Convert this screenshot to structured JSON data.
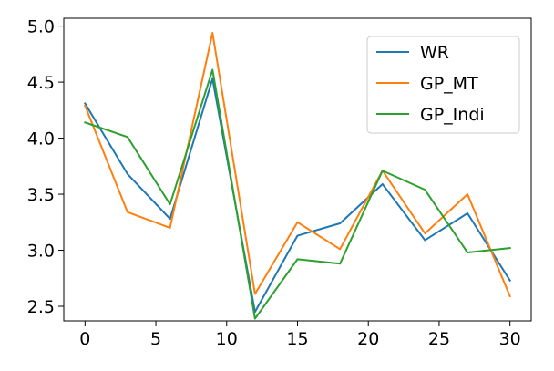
{
  "chart_data": {
    "type": "line",
    "title": "",
    "xlabel": "",
    "ylabel": "",
    "xlim": [
      -1.5,
      31.5
    ],
    "ylim": [
      2.37,
      5.07
    ],
    "xticks": [
      0,
      5,
      10,
      15,
      20,
      25,
      30
    ],
    "xtick_labels": [
      "0",
      "5",
      "10",
      "15",
      "20",
      "25",
      "30"
    ],
    "yticks": [
      2.5,
      3.0,
      3.5,
      4.0,
      4.5,
      5.0
    ],
    "ytick_labels": [
      "2.5",
      "3.0",
      "3.5",
      "4.0",
      "4.5",
      "5.0"
    ],
    "grid": false,
    "legend_position": "top-right",
    "x": [
      0,
      3,
      6,
      9,
      12,
      15,
      18,
      21,
      24,
      27,
      30
    ],
    "series": [
      {
        "name": "WR",
        "color": "#1f77b4",
        "values": [
          4.31,
          3.68,
          3.28,
          4.53,
          2.45,
          3.13,
          3.24,
          3.59,
          3.09,
          3.33,
          2.73
        ]
      },
      {
        "name": "GP_MT",
        "color": "#ff7f0e",
        "values": [
          4.29,
          3.34,
          3.2,
          4.94,
          2.61,
          3.25,
          3.01,
          3.71,
          3.15,
          3.5,
          2.59
        ]
      },
      {
        "name": "GP_Indi",
        "color": "#2ca02c",
        "values": [
          4.14,
          4.01,
          3.41,
          4.61,
          2.39,
          2.92,
          2.88,
          3.71,
          3.54,
          2.98,
          3.02
        ]
      }
    ]
  }
}
